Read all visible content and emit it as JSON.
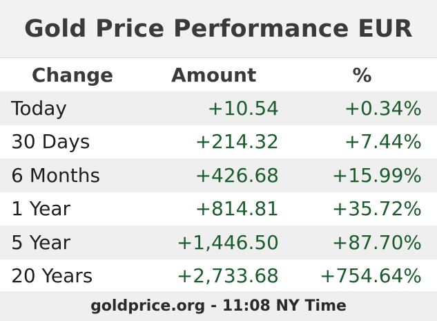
{
  "title": "Gold Price Performance EUR",
  "headers": {
    "change": "Change",
    "amount": "Amount",
    "percent": "%"
  },
  "rows": [
    {
      "change": "Today",
      "amount": "+10.54",
      "percent": "+0.34%"
    },
    {
      "change": "30 Days",
      "amount": "+214.32",
      "percent": "+7.44%"
    },
    {
      "change": "6 Months",
      "amount": "+426.68",
      "percent": "+15.99%"
    },
    {
      "change": "1 Year",
      "amount": "+814.81",
      "percent": "+35.72%"
    },
    {
      "change": "5 Year",
      "amount": "+1,446.50",
      "percent": "+87.70%"
    },
    {
      "change": "20 Years",
      "amount": "+2,733.68",
      "percent": "+754.64%"
    }
  ],
  "footer": "goldprice.org - 11:08 NY Time",
  "colors": {
    "positive_value": "#1a5c2b",
    "title_bar_bg": "#f2f2f2",
    "stripe_bg": "#efefef"
  }
}
